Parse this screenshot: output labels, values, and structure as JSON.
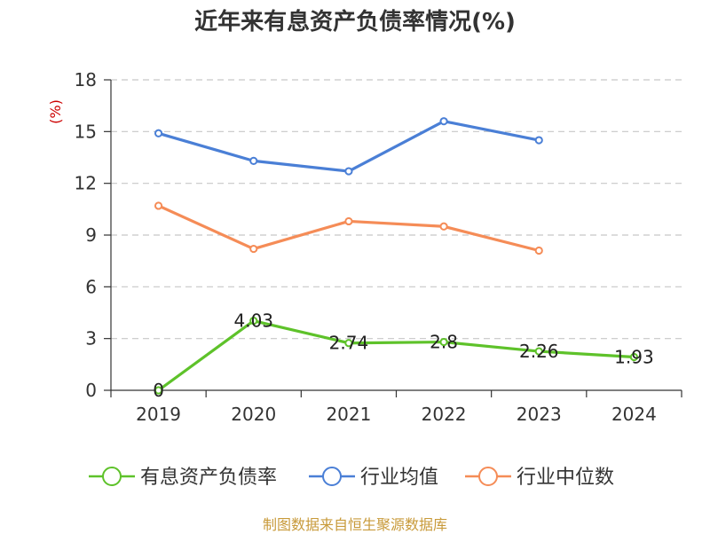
{
  "title": "近年来有息资产负债率情况(%)",
  "source": "制图数据来自恒生聚源数据库",
  "colors": {
    "series": [
      "#5ec22a",
      "#4a7fd6",
      "#f58c57"
    ],
    "grid": "#c8c8c8",
    "axis": "#333333",
    "unit": "#cc0000",
    "source": "#c89a3a"
  },
  "chart_data": {
    "type": "line",
    "title": "近年来有息资产负债率情况(%)",
    "ylabel": "(%)",
    "xlabel": "",
    "categories": [
      "2019",
      "2020",
      "2021",
      "2022",
      "2023",
      "2024"
    ],
    "ylim": [
      0,
      18
    ],
    "yticks": [
      0,
      3,
      6,
      9,
      12,
      15,
      18
    ],
    "grid": true,
    "legend_position": "bottom",
    "series": [
      {
        "name": "有息资产负债率",
        "values": [
          0,
          4.03,
          2.74,
          2.8,
          2.26,
          1.93
        ],
        "labels": [
          "0",
          "4.03",
          "2.74",
          "2.8",
          "2.26",
          "1.93"
        ]
      },
      {
        "name": "行业均值",
        "values": [
          14.9,
          13.3,
          12.7,
          15.6,
          14.5,
          null
        ]
      },
      {
        "name": "行业中位数",
        "values": [
          10.7,
          8.2,
          9.8,
          9.5,
          8.1,
          null
        ]
      }
    ]
  }
}
